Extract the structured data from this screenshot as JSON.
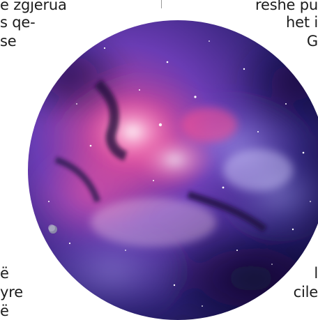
{
  "left_column": {
    "lines": [
      "ë zgjerua",
      "s qe-",
      "se",
      "ë",
      "yre",
      "ë"
    ]
  },
  "right_column": {
    "lines": [
      "reshe pu",
      "het i",
      "G",
      "l",
      "cile"
    ]
  },
  "image": {
    "icon": "galaxy-nebula-photo",
    "colors": {
      "deep": "#130f3c",
      "violet": "#6a3cb4",
      "magenta": "#e04896",
      "pink": "#f6a6cf",
      "white": "#f8eefe"
    }
  }
}
